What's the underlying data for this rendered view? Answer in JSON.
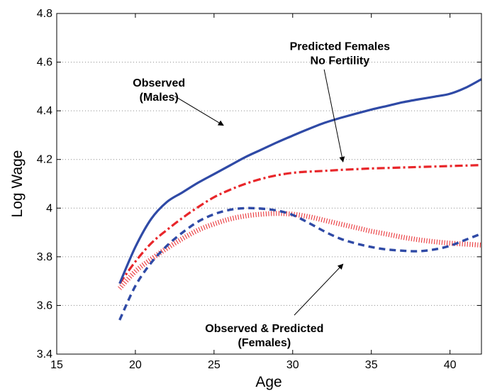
{
  "chart_data": {
    "type": "line",
    "xlabel": "Age",
    "ylabel": "Log Wage",
    "xlim": [
      15,
      42
    ],
    "ylim": [
      3.4,
      4.8
    ],
    "xticks": [
      15,
      20,
      25,
      30,
      35,
      40
    ],
    "yticks": [
      3.4,
      3.6,
      3.8,
      4,
      4.2,
      4.4,
      4.6,
      4.8
    ],
    "x_tick_labels": [
      "15",
      "20",
      "25",
      "30",
      "35",
      "40"
    ],
    "y_tick_labels": [
      "3.4",
      "3.6",
      "3.8",
      "4",
      "4.2",
      "4.4",
      "4.6",
      "4.8"
    ],
    "grid": "horizontal dotted",
    "series": [
      {
        "style": "solid",
        "color": "#2f4aa6",
        "x": [
          19,
          20,
          21,
          22,
          23,
          24,
          25,
          26,
          27,
          28,
          29,
          30,
          31,
          32,
          33,
          34,
          35,
          36,
          37,
          38,
          39,
          40,
          41,
          42
        ],
        "y": [
          3.69,
          3.84,
          3.955,
          4.025,
          4.065,
          4.105,
          4.14,
          4.175,
          4.21,
          4.24,
          4.27,
          4.298,
          4.325,
          4.35,
          4.37,
          4.388,
          4.405,
          4.42,
          4.435,
          4.447,
          4.458,
          4.47,
          4.495,
          4.53
        ]
      },
      {
        "style": "dash-dot",
        "color": "#e8262a",
        "x": [
          19,
          20,
          21,
          22,
          23,
          24,
          25,
          26,
          27,
          28,
          29,
          30,
          31,
          32,
          33,
          34,
          35,
          36,
          37,
          38,
          39,
          40,
          41,
          42
        ],
        "y": [
          3.69,
          3.78,
          3.855,
          3.91,
          3.96,
          4.005,
          4.045,
          4.075,
          4.1,
          4.12,
          4.135,
          4.145,
          4.15,
          4.153,
          4.157,
          4.16,
          4.163,
          4.165,
          4.167,
          4.169,
          4.171,
          4.173,
          4.175,
          4.177
        ]
      },
      {
        "style": "dashed",
        "color": "#2f4aa6",
        "x": [
          19,
          20,
          21,
          22,
          23,
          24,
          25,
          26,
          27,
          28,
          29,
          30,
          31,
          32,
          33,
          34,
          35,
          36,
          37,
          38,
          39,
          40,
          41,
          42
        ],
        "y": [
          3.54,
          3.68,
          3.775,
          3.845,
          3.9,
          3.945,
          3.975,
          3.993,
          4.0,
          3.998,
          3.99,
          3.972,
          3.94,
          3.905,
          3.875,
          3.855,
          3.84,
          3.83,
          3.825,
          3.823,
          3.83,
          3.845,
          3.87,
          3.895
        ]
      },
      {
        "style": "hatched",
        "color": "#e8262a",
        "x": [
          19,
          20,
          21,
          22,
          23,
          24,
          25,
          26,
          27,
          28,
          29,
          30,
          31,
          32,
          33,
          34,
          35,
          36,
          37,
          38,
          39,
          40,
          41,
          42
        ],
        "y": [
          3.67,
          3.74,
          3.79,
          3.835,
          3.875,
          3.91,
          3.935,
          3.955,
          3.968,
          3.975,
          3.978,
          3.975,
          3.965,
          3.95,
          3.935,
          3.92,
          3.905,
          3.893,
          3.88,
          3.87,
          3.862,
          3.856,
          3.852,
          3.848
        ]
      }
    ],
    "annotations": [
      {
        "lines": [
          "Predicted Females",
          "No Fertility"
        ],
        "text_anchor": [
          33,
          4.65
        ],
        "arrow_from": [
          32,
          4.57
        ],
        "arrow_to": [
          33.2,
          4.19
        ]
      },
      {
        "lines": [
          "Observed",
          "(Males)"
        ],
        "text_anchor": [
          21.5,
          4.5
        ],
        "arrow_from": [
          22.5,
          4.46
        ],
        "arrow_to": [
          25.6,
          4.34
        ]
      },
      {
        "lines": [
          "Observed & Predicted",
          "(Females)"
        ],
        "text_anchor": [
          28.2,
          3.49
        ],
        "arrow_from": [
          30.1,
          3.56
        ],
        "arrow_to": [
          33.2,
          3.77
        ]
      }
    ]
  }
}
